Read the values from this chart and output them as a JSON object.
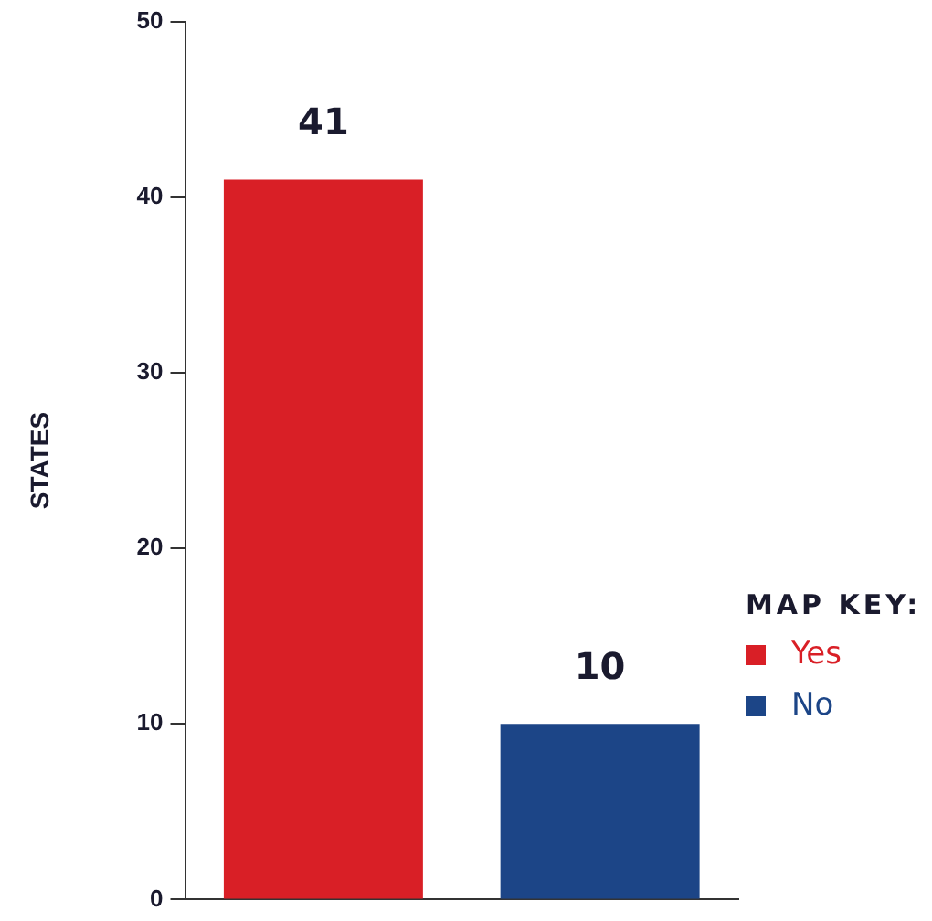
{
  "chart_data": {
    "type": "bar",
    "ylabel": "STATES",
    "legend_title": "MAP KEY:",
    "categories": [
      null,
      null
    ],
    "series": [
      {
        "name": "Yes",
        "color": "#d91f26",
        "values": [
          41,
          null
        ]
      },
      {
        "name": "No",
        "color": "#1c4587",
        "values": [
          null,
          10
        ]
      }
    ],
    "ylim": [
      0,
      50
    ],
    "yticks": [
      0,
      10,
      20,
      30,
      40,
      50
    ],
    "grid": false,
    "legend": "right",
    "data_labels": true
  }
}
